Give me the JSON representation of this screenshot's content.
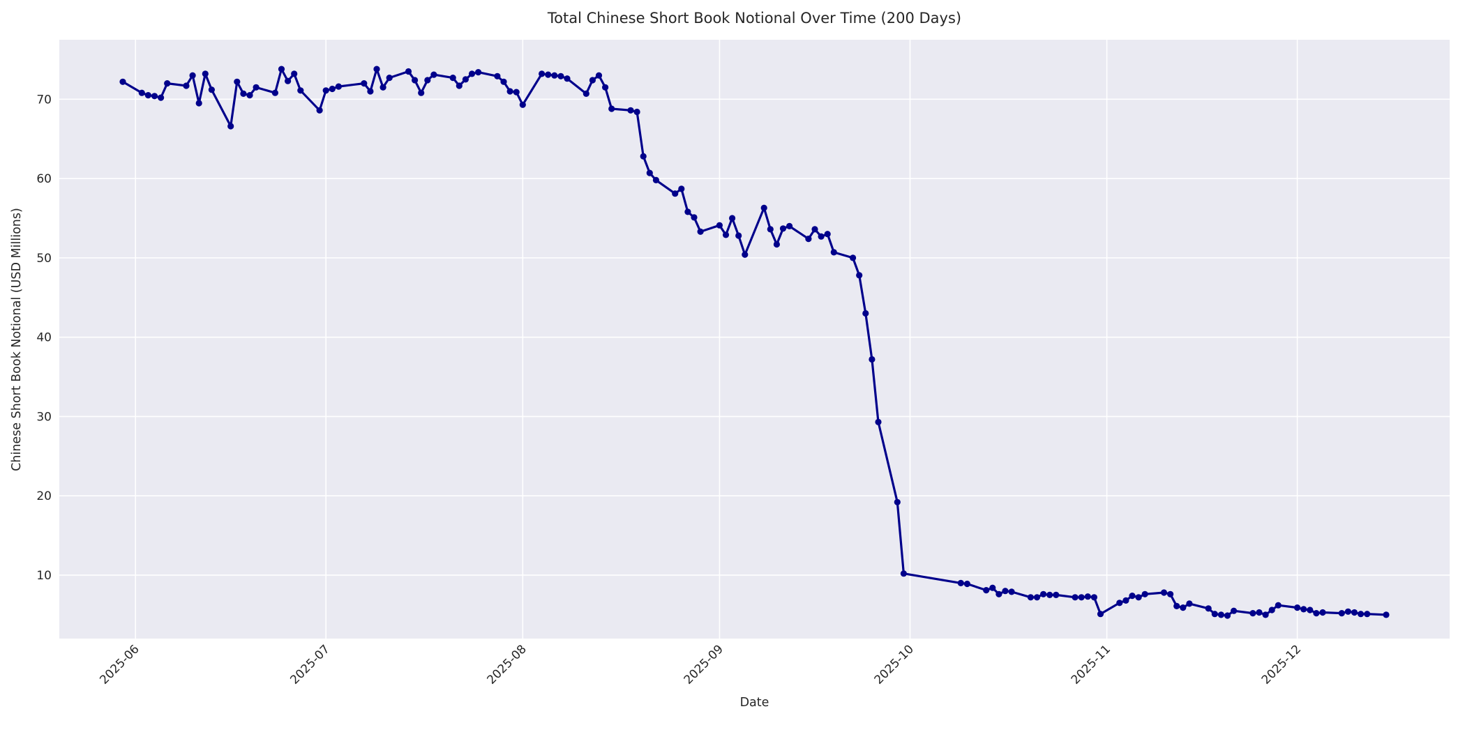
{
  "figure": {
    "title": "Total Chinese Short Book Notional Over Time (200 Days)",
    "xlabel": "Date",
    "ylabel": "Chinese Short Book Notional (USD Millions)"
  },
  "chart_data": {
    "type": "line",
    "title": "Total Chinese Short Book Notional Over Time (200 Days)",
    "xlabel": "Date",
    "ylabel": "Chinese Short Book Notional (USD Millions)",
    "grid": true,
    "legend": false,
    "background_color": "#EAEAF2",
    "gridline_color": "#FFFFFF",
    "text_color": "#262626",
    "xlim": [
      "2025-05-20",
      "2025-12-25"
    ],
    "ylim": [
      2.0,
      77.5
    ],
    "x_ticks": [
      "2025-06-01",
      "2025-07-01",
      "2025-08-01",
      "2025-09-01",
      "2025-10-01",
      "2025-11-01",
      "2025-12-01"
    ],
    "x_tick_labels": [
      "2025-06",
      "2025-07",
      "2025-08",
      "2025-09",
      "2025-10",
      "2025-11",
      "2025-12"
    ],
    "y_ticks": [
      10,
      20,
      30,
      40,
      50,
      60,
      70
    ],
    "series": [
      {
        "name": "Total Chinese Short Book Notional",
        "color": "#00008B",
        "marker": "o",
        "x": [
          "2025-05-30",
          "2025-06-02",
          "2025-06-03",
          "2025-06-04",
          "2025-06-05",
          "2025-06-06",
          "2025-06-09",
          "2025-06-10",
          "2025-06-11",
          "2025-06-12",
          "2025-06-13",
          "2025-06-16",
          "2025-06-17",
          "2025-06-18",
          "2025-06-19",
          "2025-06-20",
          "2025-06-23",
          "2025-06-24",
          "2025-06-25",
          "2025-06-26",
          "2025-06-27",
          "2025-06-30",
          "2025-07-01",
          "2025-07-02",
          "2025-07-03",
          "2025-07-07",
          "2025-07-08",
          "2025-07-09",
          "2025-07-10",
          "2025-07-11",
          "2025-07-14",
          "2025-07-15",
          "2025-07-16",
          "2025-07-17",
          "2025-07-18",
          "2025-07-21",
          "2025-07-22",
          "2025-07-23",
          "2025-07-24",
          "2025-07-25",
          "2025-07-28",
          "2025-07-29",
          "2025-07-30",
          "2025-07-31",
          "2025-08-01",
          "2025-08-04",
          "2025-08-05",
          "2025-08-06",
          "2025-08-07",
          "2025-08-08",
          "2025-08-11",
          "2025-08-12",
          "2025-08-13",
          "2025-08-14",
          "2025-08-15",
          "2025-08-18",
          "2025-08-19",
          "2025-08-20",
          "2025-08-21",
          "2025-08-22",
          "2025-08-25",
          "2025-08-26",
          "2025-08-27",
          "2025-08-28",
          "2025-08-29",
          "2025-09-01",
          "2025-09-02",
          "2025-09-03",
          "2025-09-04",
          "2025-09-05",
          "2025-09-08",
          "2025-09-09",
          "2025-09-10",
          "2025-09-11",
          "2025-09-12",
          "2025-09-15",
          "2025-09-16",
          "2025-09-17",
          "2025-09-18",
          "2025-09-19",
          "2025-09-22",
          "2025-09-23",
          "2025-09-24",
          "2025-09-25",
          "2025-09-26",
          "2025-09-29",
          "2025-09-30",
          "2025-10-09",
          "2025-10-10",
          "2025-10-13",
          "2025-10-14",
          "2025-10-15",
          "2025-10-16",
          "2025-10-17",
          "2025-10-20",
          "2025-10-21",
          "2025-10-22",
          "2025-10-23",
          "2025-10-24",
          "2025-10-27",
          "2025-10-28",
          "2025-10-29",
          "2025-10-30",
          "2025-10-31",
          "2025-11-03",
          "2025-11-04",
          "2025-11-05",
          "2025-11-06",
          "2025-11-07",
          "2025-11-10",
          "2025-11-11",
          "2025-11-12",
          "2025-11-13",
          "2025-11-14",
          "2025-11-17",
          "2025-11-18",
          "2025-11-19",
          "2025-11-20",
          "2025-11-21",
          "2025-11-24",
          "2025-11-25",
          "2025-11-26",
          "2025-11-27",
          "2025-11-28",
          "2025-12-01",
          "2025-12-02",
          "2025-12-03",
          "2025-12-04",
          "2025-12-05",
          "2025-12-08",
          "2025-12-09",
          "2025-12-10",
          "2025-12-11",
          "2025-12-12",
          "2025-12-15"
        ],
        "y": [
          72.2,
          70.8,
          70.5,
          70.4,
          70.2,
          72.0,
          71.7,
          73.0,
          69.5,
          73.2,
          71.2,
          66.6,
          72.2,
          70.7,
          70.5,
          71.5,
          70.8,
          73.8,
          72.3,
          73.2,
          71.1,
          68.6,
          71.1,
          71.3,
          71.6,
          72.0,
          71.0,
          73.8,
          71.5,
          72.7,
          73.5,
          72.4,
          70.8,
          72.4,
          73.1,
          72.7,
          71.7,
          72.5,
          73.2,
          73.4,
          72.9,
          72.2,
          71.0,
          70.9,
          69.3,
          73.2,
          73.1,
          73.0,
          72.9,
          72.6,
          70.7,
          72.4,
          73.0,
          71.5,
          68.8,
          68.6,
          68.4,
          62.8,
          60.7,
          59.8,
          58.1,
          58.7,
          55.8,
          55.1,
          53.3,
          54.1,
          52.9,
          55.0,
          52.8,
          50.4,
          56.3,
          53.6,
          51.7,
          53.7,
          54.0,
          52.4,
          53.6,
          52.7,
          53.0,
          50.7,
          50.0,
          47.8,
          43.0,
          37.2,
          29.3,
          19.2,
          10.2,
          9.0,
          8.9,
          8.1,
          8.4,
          7.6,
          8.0,
          7.9,
          7.2,
          7.2,
          7.6,
          7.5,
          7.5,
          7.2,
          7.2,
          7.3,
          7.2,
          5.1,
          6.5,
          6.8,
          7.4,
          7.2,
          7.6,
          7.8,
          7.6,
          6.1,
          5.9,
          6.4,
          5.8,
          5.1,
          5.0,
          4.9,
          5.5,
          5.2,
          5.3,
          5.0,
          5.6,
          6.2,
          5.9,
          5.7,
          5.6,
          5.2,
          5.3,
          5.2,
          5.4,
          5.3,
          5.1,
          5.1,
          5.0
        ]
      }
    ]
  }
}
